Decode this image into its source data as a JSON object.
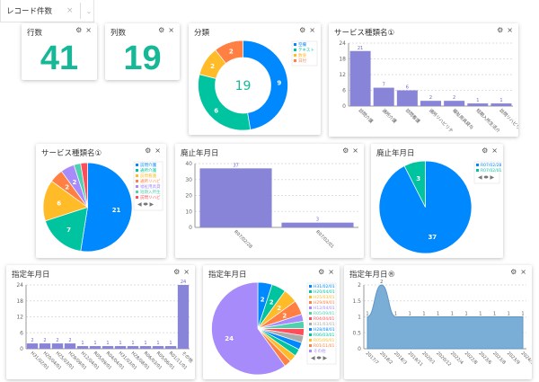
{
  "tab": {
    "label": "レコード件数",
    "close": "×",
    "chevron": "⌄"
  },
  "icons": {
    "gear": "⚙",
    "close": "×"
  },
  "colors": [
    "#0088fe",
    "#00c49f",
    "#ffbb28",
    "#ff8042",
    "#a78bfa",
    "#4fd1b0",
    "#ff4d5a",
    "#aaaaaa",
    "#0088fe",
    "#00c49f",
    "#ffbb28",
    "#ff8042",
    "#a78bfa"
  ],
  "bar_color": "#8884d8",
  "area_color": "#7aaed6",
  "cards": {
    "rows": {
      "title": "行数",
      "value": "41"
    },
    "cols": {
      "title": "列数",
      "value": "19"
    },
    "category": {
      "title": "分類"
    },
    "svc_bar": {
      "title": "サービス種類名①"
    },
    "svc_pie": {
      "title": "サービス種類名①"
    },
    "abol_bar": {
      "title": "廃止年月日"
    },
    "abol_pie": {
      "title": "廃止年月日"
    },
    "des_bar": {
      "title": "指定年月日"
    },
    "des_pie": {
      "title": "指定年月日"
    },
    "des_area": {
      "title": "指定年月日®"
    }
  },
  "chart_data": [
    {
      "id": "category",
      "type": "pie",
      "donut": true,
      "center_label": "19",
      "categories": [
        "空欄",
        "テキスト",
        "数値",
        "日付"
      ],
      "values": [
        9,
        6,
        2,
        2
      ],
      "legend": "top-right"
    },
    {
      "id": "svc_bar",
      "type": "bar",
      "categories": [
        "訪問介護",
        "通所介護",
        "訪問看護",
        "通所リハビリテ",
        "福祉用具貸与",
        "短期入所生活介",
        "訪問リハビリテ"
      ],
      "values": [
        21,
        7,
        6,
        2,
        2,
        1,
        1
      ],
      "ylim": [
        0,
        24
      ],
      "yticks": [
        0,
        6,
        12,
        18,
        24
      ],
      "grid": true
    },
    {
      "id": "svc_pie",
      "type": "pie",
      "categories": [
        "訪問介護",
        "通所介護",
        "訪問看護",
        "通所リハビ",
        "福祉用具貸",
        "短期入所生",
        "訪問リハビ"
      ],
      "values": [
        21,
        7,
        6,
        2,
        2,
        1,
        1
      ],
      "legend": "right"
    },
    {
      "id": "abol_bar",
      "type": "bar",
      "categories": [
        "R07/02/28",
        "R07/02/01"
      ],
      "values": [
        37,
        3
      ],
      "ylim": [
        0,
        40
      ],
      "yticks": [
        0,
        10,
        20,
        30,
        40
      ],
      "grid": true
    },
    {
      "id": "abol_pie",
      "type": "pie",
      "categories": [
        "R07/02/28",
        "R07/02/01"
      ],
      "values": [
        37,
        3
      ],
      "legend": "top-right"
    },
    {
      "id": "des_bar",
      "type": "bar",
      "categories": [
        "H31/02/01",
        "H20/04/01",
        "H25/03/01",
        "H29/09/01",
        "H12/04/01",
        "R05/09/01",
        "R04/04/01",
        "H31/03/01",
        "H28/08/01",
        "R06/03/01",
        "R05/06/01",
        "R01/11/01",
        "その他"
      ],
      "values": [
        2,
        2,
        2,
        2,
        1,
        1,
        1,
        1,
        1,
        1,
        1,
        1,
        24
      ],
      "ylim": [
        0,
        24
      ],
      "yticks": [
        0,
        6,
        12,
        18,
        24
      ],
      "grid": true
    },
    {
      "id": "des_pie",
      "type": "pie",
      "categories": [
        "H31/02/01",
        "H20/04/01",
        "H25/03/01",
        "H29/09/01",
        "H12/04/01",
        "R05/09/01",
        "R04/04/01",
        "H31/03/01",
        "H28/08/01",
        "R06/03/01",
        "R05/06/01",
        "R01/11/01",
        "その他"
      ],
      "values": [
        2,
        2,
        2,
        2,
        1,
        1,
        1,
        1,
        1,
        1,
        1,
        1,
        24
      ],
      "legend": "right"
    },
    {
      "id": "des_area",
      "type": "area",
      "categories": [
        "2017/7",
        "2018/2",
        "2018/3",
        "2019/11",
        "2020/1",
        "2020/12",
        "2022/4",
        "2022/8",
        "2023/6",
        "2023/8",
        "2023/9",
        "2024/3"
      ],
      "values": [
        1,
        2,
        1,
        1,
        1,
        1,
        1,
        1,
        1,
        1,
        1,
        1
      ],
      "ylim": [
        0,
        2
      ],
      "yticks": [
        "0",
        "0.5",
        "1",
        "1.5",
        "2"
      ],
      "grid": true
    }
  ]
}
